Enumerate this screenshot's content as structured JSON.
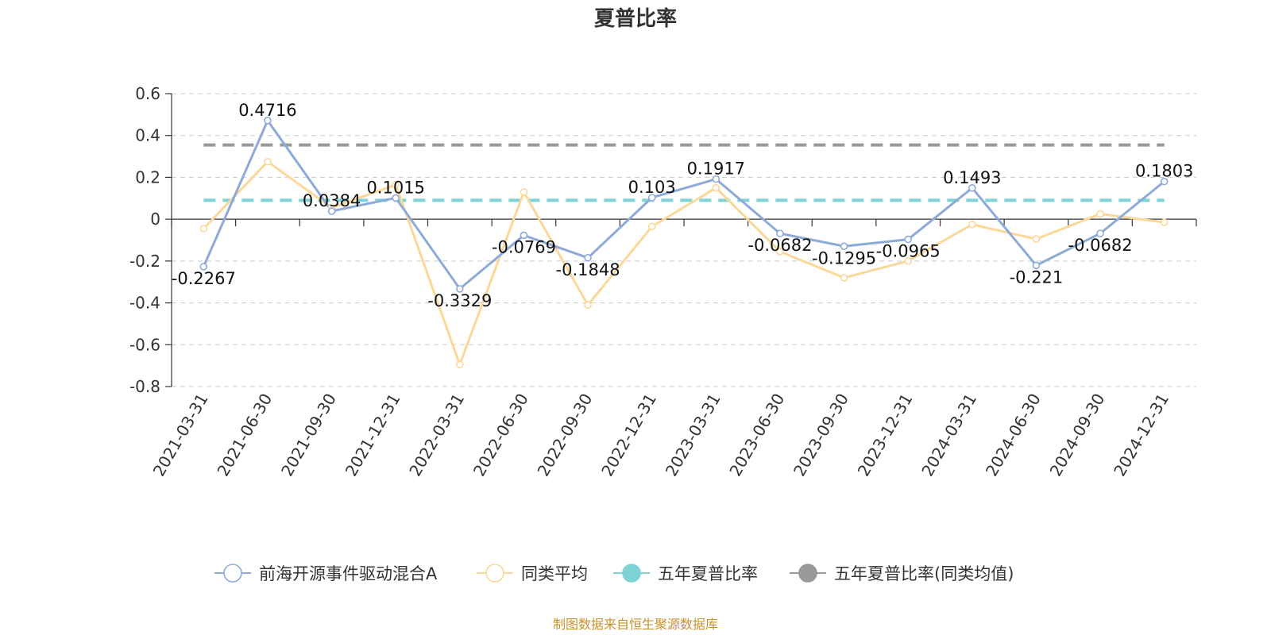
{
  "chart_data": {
    "type": "line",
    "title": "夏普比率",
    "categories": [
      "2021-03-31",
      "2021-06-30",
      "2021-09-30",
      "2021-12-31",
      "2022-03-31",
      "2022-06-30",
      "2022-09-30",
      "2022-12-31",
      "2023-03-31",
      "2023-06-30",
      "2023-09-30",
      "2023-12-31",
      "2024-03-31",
      "2024-06-30",
      "2024-09-30",
      "2024-12-31"
    ],
    "ylim": [
      -0.8,
      0.6
    ],
    "yticks": [
      "0.6",
      "0.4",
      "0.2",
      "0",
      "-0.2",
      "-0.4",
      "-0.6",
      "-0.8"
    ],
    "ytick_values": [
      0.6,
      0.4,
      0.2,
      0,
      -0.2,
      -0.4,
      -0.6,
      -0.8
    ],
    "grid": true,
    "legend_position": "bottom",
    "series": [
      {
        "name": "前海开源事件驱动混合A",
        "color": "#8eaad8",
        "values": [
          -0.2267,
          0.4716,
          0.0384,
          0.1015,
          -0.3329,
          -0.0769,
          -0.1848,
          0.103,
          0.1917,
          -0.0682,
          -0.1295,
          -0.0965,
          0.1493,
          -0.221,
          -0.0682,
          0.1803
        ],
        "labels": [
          "-0.2267",
          "0.4716",
          "0.0384",
          "0.1015",
          "-0.3329",
          "-0.0769",
          "-0.1848",
          "0.103",
          "0.1917",
          "-0.0682",
          "-0.1295",
          "-0.0965",
          "0.1493",
          "-0.221",
          "-0.0682",
          "0.1803"
        ]
      },
      {
        "name": "同类平均",
        "color": "#fbd89a",
        "values": [
          -0.045,
          0.275,
          0.055,
          0.165,
          -0.695,
          0.13,
          -0.41,
          -0.035,
          0.15,
          -0.155,
          -0.28,
          -0.2,
          -0.025,
          -0.095,
          0.025,
          -0.015
        ]
      },
      {
        "name": "五年夏普比率",
        "color": "#7dd3d3",
        "constant": 0.09
      },
      {
        "name": "五年夏普比率(同类均值)",
        "color": "#999999",
        "constant": 0.355
      }
    ],
    "source": "制图数据来自恒生聚源数据库"
  }
}
